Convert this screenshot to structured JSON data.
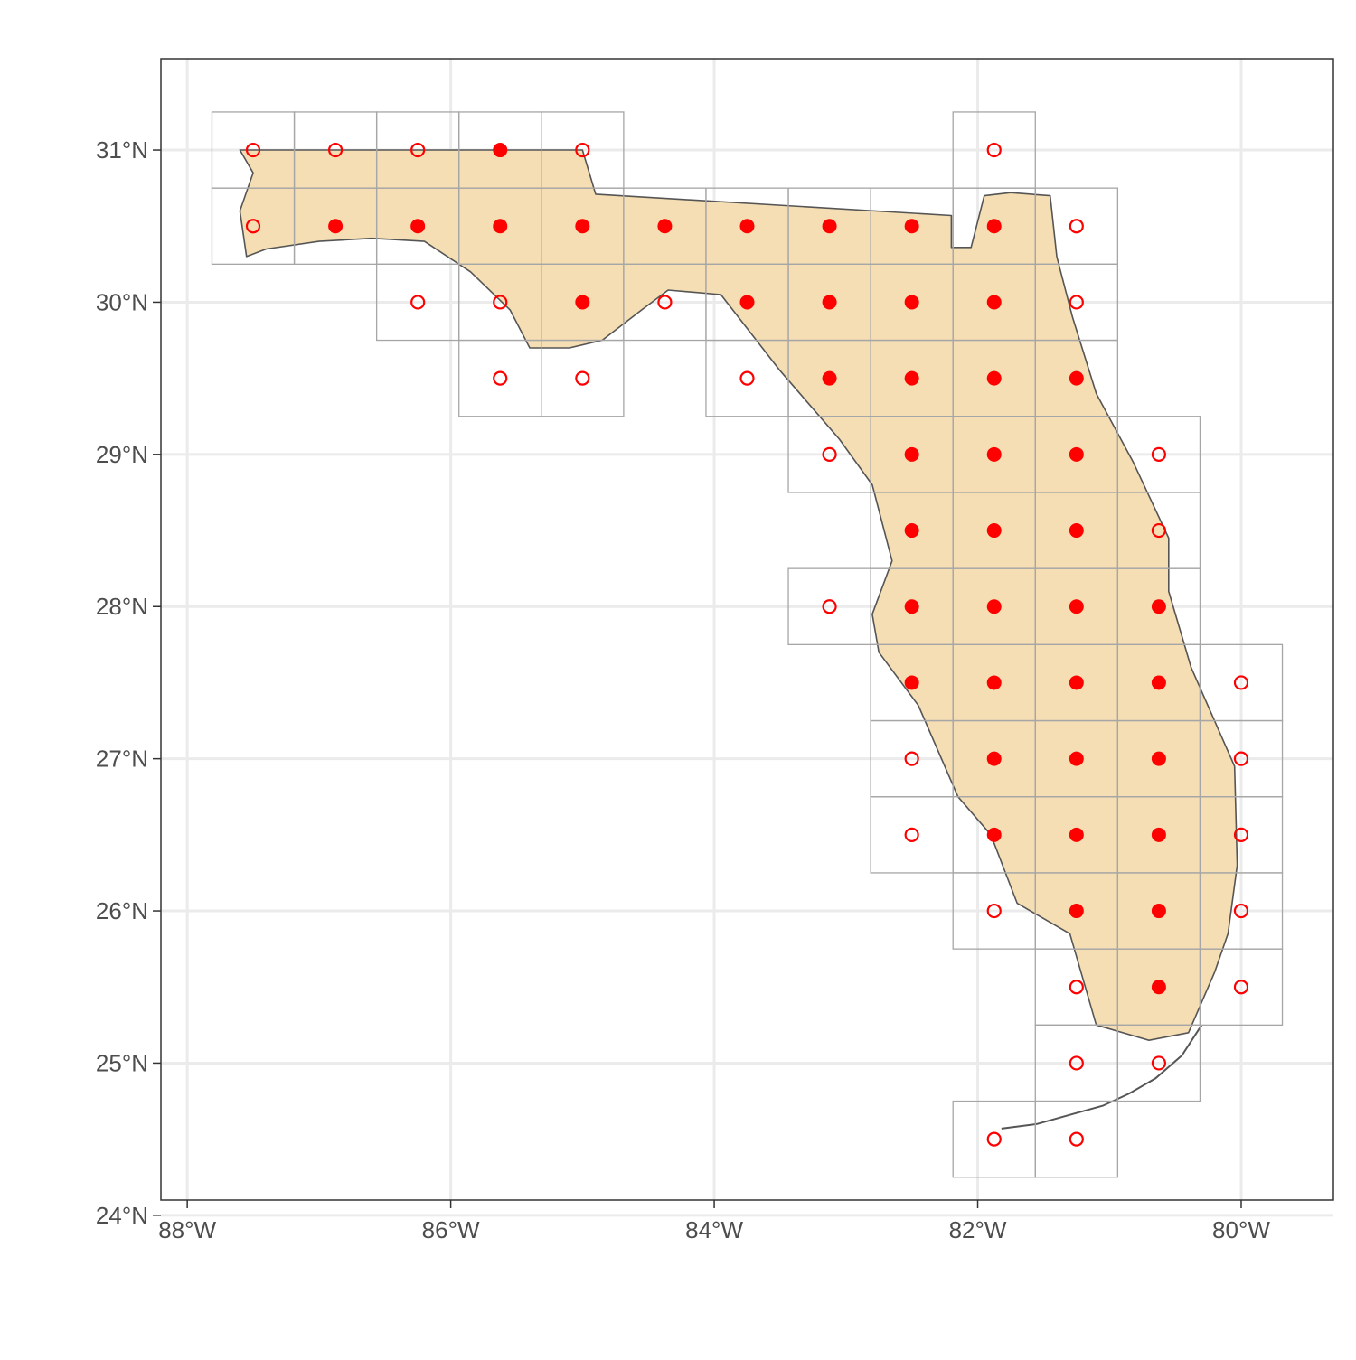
{
  "chart_data": {
    "type": "scatter",
    "title": "",
    "xlabel": "",
    "ylabel": "",
    "xlim": [
      -88.2,
      -79.3
    ],
    "ylim": [
      24.1,
      31.6
    ],
    "grid": true,
    "x_ticks": [
      {
        "value": -88,
        "label": "88°W"
      },
      {
        "value": -86,
        "label": "86°W"
      },
      {
        "value": -84,
        "label": "84°W"
      },
      {
        "value": -82,
        "label": "82°W"
      },
      {
        "value": -80,
        "label": "80°W"
      }
    ],
    "y_ticks": [
      {
        "value": 24,
        "label": "24°N"
      },
      {
        "value": 25,
        "label": "25°N"
      },
      {
        "value": 26,
        "label": "26°N"
      },
      {
        "value": 27,
        "label": "27°N"
      },
      {
        "value": 28,
        "label": "28°N"
      },
      {
        "value": 29,
        "label": "29°N"
      },
      {
        "value": 30,
        "label": "30°N"
      },
      {
        "value": 31,
        "label": "31°N"
      }
    ],
    "cell_size_deg": 0.625,
    "cell_height_deg": 0.5,
    "point_color": "#ff0000",
    "land_fill": "#f5deb3",
    "land_outline": "#555555",
    "cell_outline": "#a6a6a6",
    "filled_points": [
      [
        -85.625,
        31.0
      ],
      [
        -86.875,
        30.5
      ],
      [
        -86.25,
        30.5
      ],
      [
        -85.625,
        30.5
      ],
      [
        -85.0,
        30.5
      ],
      [
        -84.375,
        30.5
      ],
      [
        -83.75,
        30.5
      ],
      [
        -83.125,
        30.5
      ],
      [
        -82.5,
        30.5
      ],
      [
        -81.875,
        30.5
      ],
      [
        -85.0,
        30.0
      ],
      [
        -83.75,
        30.0
      ],
      [
        -83.125,
        30.0
      ],
      [
        -82.5,
        30.0
      ],
      [
        -81.875,
        30.0
      ],
      [
        -83.125,
        29.5
      ],
      [
        -82.5,
        29.5
      ],
      [
        -81.875,
        29.5
      ],
      [
        -81.25,
        29.5
      ],
      [
        -82.5,
        29.0
      ],
      [
        -81.875,
        29.0
      ],
      [
        -81.25,
        29.0
      ],
      [
        -82.5,
        28.5
      ],
      [
        -81.875,
        28.5
      ],
      [
        -81.25,
        28.5
      ],
      [
        -82.5,
        28.0
      ],
      [
        -81.875,
        28.0
      ],
      [
        -81.25,
        28.0
      ],
      [
        -80.625,
        28.0
      ],
      [
        -82.5,
        27.5
      ],
      [
        -81.875,
        27.5
      ],
      [
        -81.25,
        27.5
      ],
      [
        -80.625,
        27.5
      ],
      [
        -81.875,
        27.0
      ],
      [
        -81.25,
        27.0
      ],
      [
        -80.625,
        27.0
      ],
      [
        -81.875,
        26.5
      ],
      [
        -81.25,
        26.5
      ],
      [
        -80.625,
        26.5
      ],
      [
        -81.25,
        26.0
      ],
      [
        -80.625,
        26.0
      ],
      [
        -80.625,
        25.5
      ]
    ],
    "open_points": [
      [
        -87.5,
        31.0
      ],
      [
        -86.875,
        31.0
      ],
      [
        -86.25,
        31.0
      ],
      [
        -85.0,
        31.0
      ],
      [
        -81.875,
        31.0
      ],
      [
        -87.5,
        30.5
      ],
      [
        -81.25,
        30.5
      ],
      [
        -86.25,
        30.0
      ],
      [
        -85.625,
        30.0
      ],
      [
        -84.375,
        30.0
      ],
      [
        -81.25,
        30.0
      ],
      [
        -85.625,
        29.5
      ],
      [
        -85.0,
        29.5
      ],
      [
        -83.75,
        29.5
      ],
      [
        -83.125,
        29.0
      ],
      [
        -80.625,
        29.0
      ],
      [
        -80.625,
        28.5
      ],
      [
        -83.125,
        28.0
      ],
      [
        -80.0,
        27.5
      ],
      [
        -82.5,
        27.0
      ],
      [
        -80.0,
        27.0
      ],
      [
        -82.5,
        26.5
      ],
      [
        -80.0,
        26.5
      ],
      [
        -81.875,
        26.0
      ],
      [
        -80.0,
        26.0
      ],
      [
        -81.25,
        25.5
      ],
      [
        -80.0,
        25.5
      ],
      [
        -81.25,
        25.0
      ],
      [
        -80.625,
        25.0
      ],
      [
        -81.875,
        24.5
      ],
      [
        -81.25,
        24.5
      ]
    ]
  }
}
